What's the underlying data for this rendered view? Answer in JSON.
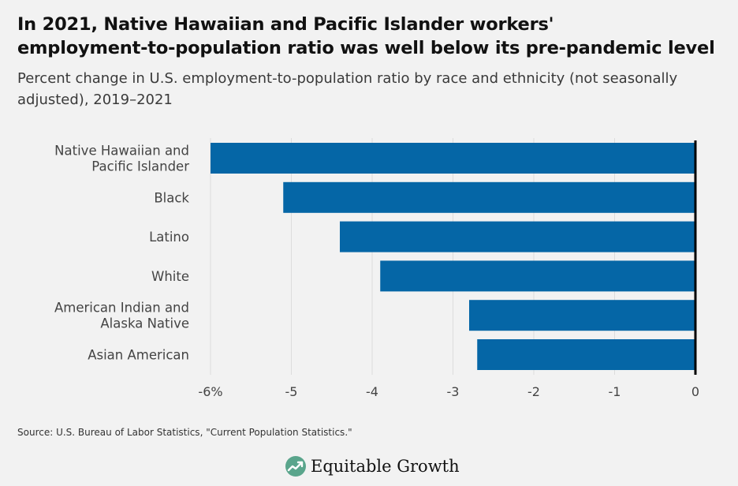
{
  "title_line1": "In 2021, Native Hawaiian and Pacific Islander workers'",
  "title_line2": "employment-to-population ratio was well below its pre-pandemic level",
  "subtitle": "Percent change in U.S. employment-to-population ratio by race and ethnicity (not seasonally adjusted), 2019–2021",
  "source": "Source: U.S. Bureau of Labor Statistics, \"Current Population Statistics.\"",
  "brand": "Equitable Growth",
  "colors": {
    "bar": "#0566a6",
    "zero_line": "#000000",
    "grid": "#dcdcdc",
    "logo_circle": "#5aa58c"
  },
  "chart_data": {
    "type": "bar",
    "orientation": "horizontal",
    "categories": [
      [
        "Native Hawaiian and",
        "Pacific Islander"
      ],
      [
        "Black"
      ],
      [
        "Latino"
      ],
      [
        "White"
      ],
      [
        "American Indian and",
        "Alaska Native"
      ],
      [
        "Asian American"
      ]
    ],
    "values": [
      -6.0,
      -5.1,
      -4.4,
      -3.9,
      -2.8,
      -2.7
    ],
    "xlim": [
      -6,
      0
    ],
    "x_ticks": [
      -6,
      -5,
      -4,
      -3,
      -2,
      -1,
      0
    ],
    "x_tick_labels": [
      "-6%",
      "-5",
      "-4",
      "-3",
      "-2",
      "-1",
      "0"
    ],
    "grid": true
  }
}
